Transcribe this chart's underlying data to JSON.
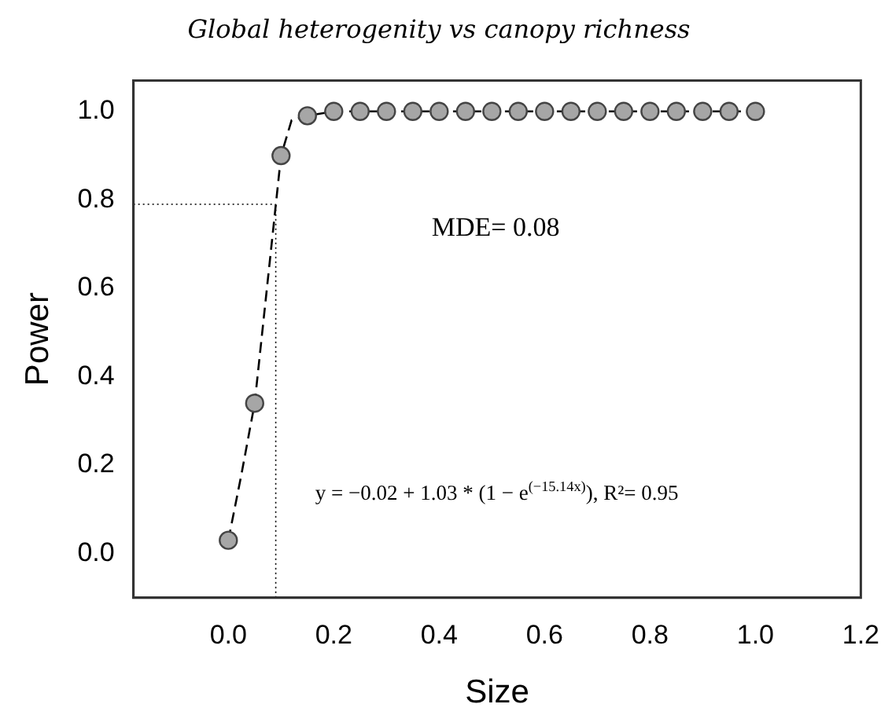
{
  "chart_data": {
    "type": "scatter",
    "title": "Global heterogenity vs canopy richness",
    "xlabel": "Size",
    "ylabel": "Power",
    "xlim": [
      -0.18,
      1.2
    ],
    "xticks": [
      {
        "value": 0,
        "label": "0.0"
      },
      {
        "value": 0.2,
        "label": "0.2"
      },
      {
        "value": 0.4,
        "label": "0.4"
      },
      {
        "value": 0.6,
        "label": "0.6"
      },
      {
        "value": 0.8,
        "label": "0.8"
      },
      {
        "value": 1,
        "label": "1.0"
      },
      {
        "value": 1.2,
        "label": "1.2"
      }
    ],
    "ylim": [
      -0.1,
      1.07
    ],
    "yticks": [
      {
        "value": 0,
        "label": "0.0"
      },
      {
        "value": 0.2,
        "label": "0.2"
      },
      {
        "value": 0.4,
        "label": "0.4"
      },
      {
        "value": 0.6,
        "label": "0.6"
      },
      {
        "value": 0.8,
        "label": "0.8"
      },
      {
        "value": 1,
        "label": "1.0"
      }
    ],
    "grid": false,
    "legend": false,
    "series": [
      {
        "type": "line",
        "color": "#000000",
        "marker": "none",
        "line_style": "dashed",
        "x": [
          0,
          0.025,
          0.05,
          0.075,
          0.1,
          0.12,
          0.15,
          0.2,
          1
        ],
        "values": [
          0.03,
          0.18,
          0.34,
          0.62,
          0.9,
          0.98,
          0.99,
          1,
          1
        ]
      },
      {
        "color": "#a6a6a6",
        "marker": "circle",
        "x": [
          0,
          0.05,
          0.1,
          0.15,
          0.2,
          0.25,
          0.3,
          0.35,
          0.4,
          0.45,
          0.5,
          0.55,
          0.6,
          0.65,
          0.7,
          0.75,
          0.8,
          0.85,
          0.9,
          0.95,
          1
        ],
        "values": [
          0.03,
          0.34,
          0.9,
          0.99,
          1,
          1,
          1,
          1,
          1,
          1,
          1,
          1,
          1,
          1,
          1,
          1,
          1,
          1,
          1,
          1,
          1
        ]
      }
    ],
    "ref_lines": [
      {
        "axis": "x",
        "value": 0.09,
        "color": "#000000",
        "line_style": "dotted"
      },
      {
        "axis": "y",
        "value": 0.79,
        "color": "#000000",
        "line_style": "dotted"
      }
    ],
    "annotations": [
      "MDE= 0.08",
      "y = −0.02 + 1.03 * (1 − e$^{(−15.14x)}$), R²= 0.95"
    ]
  }
}
